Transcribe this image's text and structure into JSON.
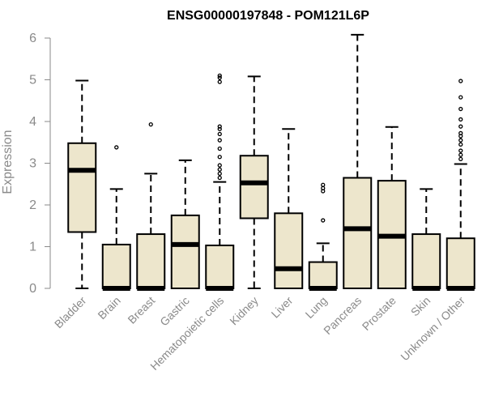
{
  "chart_data": {
    "type": "boxplot",
    "title": "ENSG00000197848 - POM121L6P",
    "ylabel": "Expression",
    "xlabel": "",
    "ylim": [
      0,
      6.2
    ],
    "yticks": [
      0,
      1,
      2,
      3,
      4,
      5,
      6
    ],
    "box_fill": "#ede6cc",
    "categories": [
      "Bladder",
      "Brain",
      "Breast",
      "Gastric",
      "Hematopoietic cells",
      "Kidney",
      "Liver",
      "Lung",
      "Pancreas",
      "Prostate",
      "Skin",
      "Unknown / Other"
    ],
    "boxes": [
      {
        "name": "Bladder",
        "whisker_low": 0,
        "q1": 1.35,
        "median": 2.83,
        "q3": 3.48,
        "whisker_high": 4.98,
        "outliers": []
      },
      {
        "name": "Brain",
        "whisker_low": 0,
        "q1": 0,
        "median": 0,
        "q3": 1.05,
        "whisker_high": 2.38,
        "outliers": [
          3.38
        ]
      },
      {
        "name": "Breast",
        "whisker_low": 0,
        "q1": 0,
        "median": 0,
        "q3": 1.3,
        "whisker_high": 2.75,
        "outliers": [
          3.93
        ]
      },
      {
        "name": "Gastric",
        "whisker_low": 0,
        "q1": 0,
        "median": 1.05,
        "q3": 1.75,
        "whisker_high": 3.07,
        "outliers": []
      },
      {
        "name": "Hematopoietic cells",
        "whisker_low": 0,
        "q1": 0,
        "median": 0,
        "q3": 1.03,
        "whisker_high": 2.55,
        "outliers": [
          2.65,
          2.75,
          2.85,
          2.95,
          3.15,
          3.35,
          3.55,
          3.7,
          3.82,
          3.88,
          4.95,
          5.05,
          5.1
        ]
      },
      {
        "name": "Kidney",
        "whisker_low": 0,
        "q1": 1.68,
        "median": 2.53,
        "q3": 3.18,
        "whisker_high": 5.08,
        "outliers": []
      },
      {
        "name": "Liver",
        "whisker_low": 0,
        "q1": 0,
        "median": 0.47,
        "q3": 1.8,
        "whisker_high": 3.82,
        "outliers": []
      },
      {
        "name": "Lung",
        "whisker_low": 0,
        "q1": 0,
        "median": 0,
        "q3": 0.63,
        "whisker_high": 1.08,
        "outliers": [
          1.63,
          2.33,
          2.4,
          2.48
        ]
      },
      {
        "name": "Pancreas",
        "whisker_low": 0,
        "q1": 0,
        "median": 1.43,
        "q3": 2.65,
        "whisker_high": 6.08,
        "outliers": []
      },
      {
        "name": "Prostate",
        "whisker_low": 0,
        "q1": 0,
        "median": 1.25,
        "q3": 2.58,
        "whisker_high": 3.87,
        "outliers": []
      },
      {
        "name": "Skin",
        "whisker_low": 0,
        "q1": 0,
        "median": 0,
        "q3": 1.3,
        "whisker_high": 2.38,
        "outliers": []
      },
      {
        "name": "Unknown / Other",
        "whisker_low": 0,
        "q1": 0,
        "median": 0,
        "q3": 1.2,
        "whisker_high": 2.98,
        "outliers": [
          3.1,
          3.2,
          3.3,
          3.45,
          3.55,
          3.65,
          3.72,
          3.88,
          4.05,
          4.3,
          4.58,
          4.97
        ]
      }
    ]
  }
}
